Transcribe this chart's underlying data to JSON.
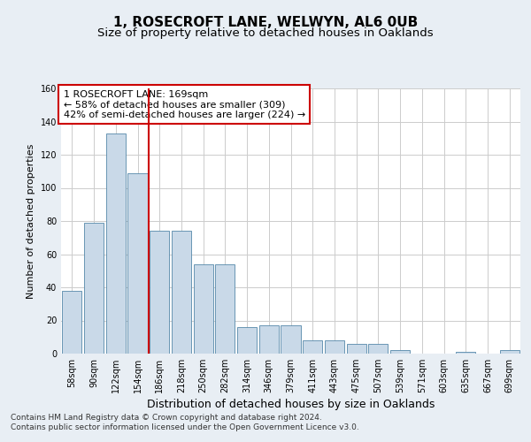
{
  "title": "1, ROSECROFT LANE, WELWYN, AL6 0UB",
  "subtitle": "Size of property relative to detached houses in Oaklands",
  "xlabel": "Distribution of detached houses by size in Oaklands",
  "ylabel": "Number of detached properties",
  "categories": [
    "58sqm",
    "90sqm",
    "122sqm",
    "154sqm",
    "186sqm",
    "218sqm",
    "250sqm",
    "282sqm",
    "314sqm",
    "346sqm",
    "379sqm",
    "411sqm",
    "443sqm",
    "475sqm",
    "507sqm",
    "539sqm",
    "571sqm",
    "603sqm",
    "635sqm",
    "667sqm",
    "699sqm"
  ],
  "bar_values": [
    38,
    79,
    133,
    109,
    74,
    74,
    54,
    54,
    16,
    17,
    17,
    8,
    8,
    6,
    6,
    2,
    0,
    0,
    1,
    0,
    2
  ],
  "bar_color": "#c9d9e8",
  "bar_edge_color": "#5588aa",
  "vline_color": "#cc0000",
  "vline_x": 3.5,
  "annotation_text_line1": "1 ROSECROFT LANE: 169sqm",
  "annotation_text_line2": "← 58% of detached houses are smaller (309)",
  "annotation_text_line3": "42% of semi-detached houses are larger (224) →",
  "annotation_edge_color": "#cc0000",
  "ylim": [
    0,
    160
  ],
  "yticks": [
    0,
    20,
    40,
    60,
    80,
    100,
    120,
    140,
    160
  ],
  "footer_text": "Contains HM Land Registry data © Crown copyright and database right 2024.\nContains public sector information licensed under the Open Government Licence v3.0.",
  "background_color": "#e8eef4",
  "plot_background": "#ffffff",
  "grid_color": "#cccccc",
  "title_fontsize": 11,
  "subtitle_fontsize": 9.5,
  "xlabel_fontsize": 9,
  "ylabel_fontsize": 8,
  "tick_fontsize": 7,
  "annotation_fontsize": 8,
  "footer_fontsize": 6.5
}
